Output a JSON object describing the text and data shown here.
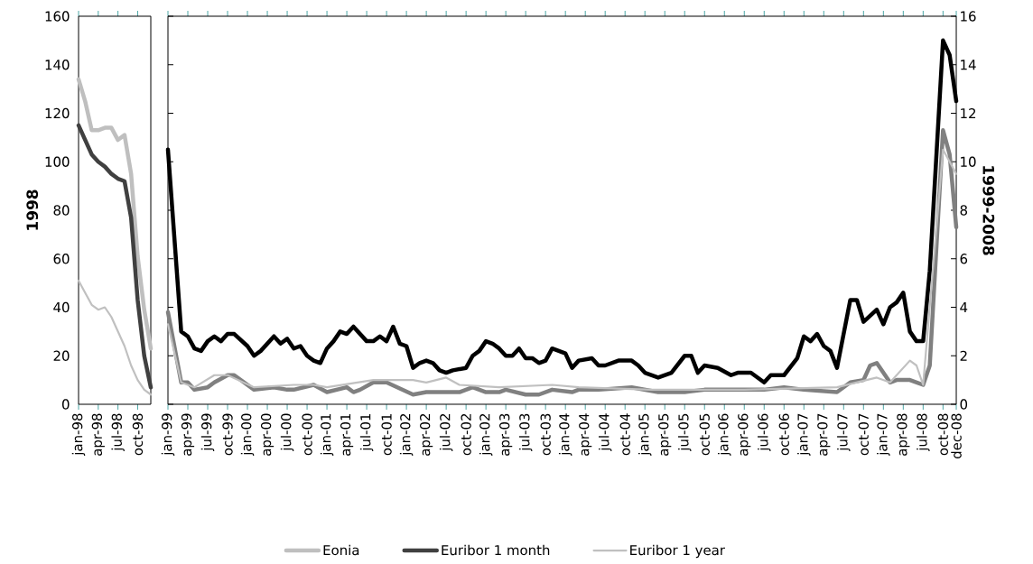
{
  "chart_data": [
    {
      "type": "line",
      "ylabel": "1998",
      "ylim": [
        0,
        160
      ],
      "yticks": [
        0,
        20,
        40,
        60,
        80,
        100,
        120,
        140,
        160
      ],
      "xlim": [
        "1998-01",
        "1998-12"
      ],
      "xticks": [
        {
          "value": "1998-01",
          "label": "jan-98"
        },
        {
          "value": "1998-04",
          "label": "apr-98"
        },
        {
          "value": "1998-07",
          "label": "jul-98"
        },
        {
          "value": "1998-10",
          "label": "oct-98"
        }
      ],
      "x": [
        "1998-01",
        "1998-02",
        "1998-03",
        "1998-04",
        "1998-05",
        "1998-06",
        "1998-07",
        "1998-08",
        "1998-09",
        "1998-10",
        "1998-11",
        "1998-12"
      ],
      "legend": "bottom",
      "series": [
        {
          "name": "Eonia",
          "color": "#bfbfbf",
          "values": [
            134,
            125,
            113,
            113,
            114,
            114,
            109,
            111,
            95,
            61,
            39,
            23
          ]
        },
        {
          "name": "Euribor 1 month",
          "color": "#404040",
          "values": [
            115,
            109,
            103,
            100,
            98,
            95,
            93,
            92,
            77,
            43,
            20,
            7
          ]
        },
        {
          "name": "Euribor 1 year",
          "color": "#c0c0c0",
          "values": [
            51,
            46,
            41,
            39,
            40,
            36,
            30,
            24,
            16,
            10,
            6,
            4
          ]
        }
      ]
    },
    {
      "type": "line",
      "y2label": "1999-2008",
      "y2lim": [
        0,
        16
      ],
      "y2ticks": [
        0,
        2,
        4,
        6,
        8,
        10,
        12,
        14,
        16
      ],
      "xlim": [
        "1999-01",
        "2008-12"
      ],
      "xticks": [
        {
          "value": "1999-01",
          "label": "jan-99"
        },
        {
          "value": "1999-04",
          "label": "apr-99"
        },
        {
          "value": "1999-07",
          "label": "jul-99"
        },
        {
          "value": "1999-10",
          "label": "oct-99"
        },
        {
          "value": "2000-01",
          "label": "jan-00"
        },
        {
          "value": "2000-04",
          "label": "apr-00"
        },
        {
          "value": "2000-07",
          "label": "jul-00"
        },
        {
          "value": "2000-10",
          "label": "oct-00"
        },
        {
          "value": "2001-01",
          "label": "jan-01"
        },
        {
          "value": "2001-04",
          "label": "apr-01"
        },
        {
          "value": "2001-07",
          "label": "jul-01"
        },
        {
          "value": "2001-10",
          "label": "oct-01"
        },
        {
          "value": "2002-01",
          "label": "jan-02"
        },
        {
          "value": "2002-04",
          "label": "apr-02"
        },
        {
          "value": "2002-07",
          "label": "jul-02"
        },
        {
          "value": "2002-10",
          "label": "oct-02"
        },
        {
          "value": "2003-01",
          "label": "jan-02"
        },
        {
          "value": "2003-04",
          "label": "apr-03"
        },
        {
          "value": "2003-07",
          "label": "jul-03"
        },
        {
          "value": "2003-10",
          "label": "oct-03"
        },
        {
          "value": "2004-01",
          "label": "jan-04"
        },
        {
          "value": "2004-04",
          "label": "apr-04"
        },
        {
          "value": "2004-07",
          "label": "jul-04"
        },
        {
          "value": "2004-10",
          "label": "oct-04"
        },
        {
          "value": "2005-01",
          "label": "jan-05"
        },
        {
          "value": "2005-04",
          "label": "apr-05"
        },
        {
          "value": "2005-07",
          "label": "jul-05"
        },
        {
          "value": "2005-10",
          "label": "oct-05"
        },
        {
          "value": "2006-01",
          "label": "jan-06"
        },
        {
          "value": "2006-04",
          "label": "apr-06"
        },
        {
          "value": "2006-07",
          "label": "jul-06"
        },
        {
          "value": "2006-10",
          "label": "oct-06"
        },
        {
          "value": "2007-01",
          "label": "jan-07"
        },
        {
          "value": "2007-04",
          "label": "apr-07"
        },
        {
          "value": "2007-07",
          "label": "jul-07"
        },
        {
          "value": "2007-10",
          "label": "oct-07"
        },
        {
          "value": "2008-01",
          "label": "jan-07"
        },
        {
          "value": "2008-04",
          "label": "apr-08"
        },
        {
          "value": "2008-07",
          "label": "jul-08"
        },
        {
          "value": "2008-10",
          "label": "oct-08"
        },
        {
          "value": "2008-12",
          "label": "dec-08"
        }
      ],
      "series": [
        {
          "axis": "y2",
          "color": "#000000",
          "x": [
            "1999-01",
            "1999-03",
            "1999-04",
            "1999-05",
            "1999-06",
            "1999-07",
            "1999-08",
            "1999-09",
            "1999-10",
            "1999-11",
            "2000-01",
            "2000-02",
            "2000-03",
            "2000-05",
            "2000-06",
            "2000-07",
            "2000-08",
            "2000-09",
            "2000-10",
            "2000-11",
            "2000-12",
            "2001-01",
            "2001-02",
            "2001-03",
            "2001-04",
            "2001-05",
            "2001-06",
            "2001-07",
            "2001-08",
            "2001-09",
            "2001-10",
            "2001-11",
            "2001-12",
            "2002-01",
            "2002-02",
            "2002-03",
            "2002-04",
            "2002-05",
            "2002-06",
            "2002-07",
            "2002-08",
            "2002-10",
            "2002-11",
            "2002-12",
            "2003-01",
            "2003-02",
            "2003-03",
            "2003-04",
            "2003-05",
            "2003-06",
            "2003-07",
            "2003-08",
            "2003-09",
            "2003-10",
            "2003-11",
            "2003-12",
            "2004-01",
            "2004-02",
            "2004-03",
            "2004-05",
            "2004-06",
            "2004-07",
            "2004-09",
            "2004-11",
            "2004-12",
            "2005-01",
            "2005-03",
            "2005-05",
            "2005-07",
            "2005-08",
            "2005-09",
            "2005-10",
            "2005-12",
            "2006-02",
            "2006-03",
            "2006-05",
            "2006-07",
            "2006-08",
            "2006-10",
            "2006-12",
            "2007-01",
            "2007-02",
            "2007-03",
            "2007-04",
            "2007-05",
            "2007-06",
            "2007-08",
            "2007-09",
            "2007-10",
            "2007-12",
            "2008-01",
            "2008-02",
            "2008-03",
            "2008-04",
            "2008-05",
            "2008-06",
            "2008-07",
            "2008-08",
            "2008-10",
            "2008-11",
            "2008-12"
          ],
          "values": [
            10.5,
            3.0,
            2.8,
            2.3,
            2.2,
            2.6,
            2.8,
            2.6,
            2.9,
            2.9,
            2.4,
            2.0,
            2.2,
            2.8,
            2.5,
            2.7,
            2.3,
            2.4,
            2.0,
            1.8,
            1.7,
            2.3,
            2.6,
            3.0,
            2.9,
            3.2,
            2.9,
            2.6,
            2.6,
            2.8,
            2.6,
            3.2,
            2.5,
            2.4,
            1.5,
            1.7,
            1.8,
            1.7,
            1.4,
            1.3,
            1.4,
            1.5,
            2.0,
            2.2,
            2.6,
            2.5,
            2.3,
            2.0,
            2.0,
            2.3,
            1.9,
            1.9,
            1.7,
            1.8,
            2.3,
            2.2,
            2.1,
            1.5,
            1.8,
            1.9,
            1.6,
            1.6,
            1.8,
            1.8,
            1.6,
            1.3,
            1.1,
            1.3,
            2.0,
            2.0,
            1.3,
            1.6,
            1.5,
            1.2,
            1.3,
            1.3,
            0.9,
            1.2,
            1.2,
            1.9,
            2.8,
            2.6,
            2.9,
            2.4,
            2.2,
            1.5,
            4.3,
            4.3,
            3.4,
            3.9,
            3.3,
            4.0,
            4.2,
            4.6,
            3.0,
            2.6,
            2.6,
            5.5,
            15.0,
            14.4,
            12.5
          ]
        },
        {
          "axis": "y2",
          "color": "#808080",
          "x": [
            "1999-01",
            "1999-03",
            "1999-04",
            "1999-05",
            "1999-07",
            "1999-08",
            "1999-10",
            "1999-11",
            "2000-02",
            "2000-05",
            "2000-07",
            "2000-08",
            "2000-11",
            "2001-01",
            "2001-04",
            "2001-05",
            "2001-06",
            "2001-08",
            "2001-10",
            "2002-02",
            "2002-04",
            "2002-07",
            "2002-09",
            "2002-11",
            "2003-01",
            "2003-03",
            "2003-04",
            "2003-07",
            "2003-09",
            "2003-11",
            "2004-02",
            "2004-03",
            "2004-06",
            "2004-11",
            "2005-03",
            "2005-07",
            "2005-10",
            "2006-04",
            "2006-07",
            "2006-10",
            "2007-01",
            "2007-06",
            "2007-08",
            "2007-10",
            "2007-11",
            "2007-12",
            "2008-02",
            "2008-03",
            "2008-05",
            "2008-07",
            "2008-08",
            "2008-10",
            "2008-11",
            "2008-12"
          ],
          "values": [
            3.8,
            0.9,
            0.9,
            0.6,
            0.7,
            0.9,
            1.2,
            1.2,
            0.6,
            0.7,
            0.6,
            0.6,
            0.8,
            0.5,
            0.7,
            0.5,
            0.6,
            0.9,
            0.9,
            0.4,
            0.5,
            0.5,
            0.5,
            0.7,
            0.5,
            0.5,
            0.6,
            0.4,
            0.4,
            0.6,
            0.5,
            0.6,
            0.6,
            0.7,
            0.5,
            0.5,
            0.6,
            0.6,
            0.6,
            0.7,
            0.6,
            0.5,
            0.9,
            1.0,
            1.6,
            1.7,
            0.9,
            1.0,
            1.0,
            0.8,
            1.6,
            11.3,
            10.3,
            7.3
          ]
        },
        {
          "axis": "y2",
          "color": "#c0c0c0",
          "x": [
            "1999-01",
            "1999-03",
            "1999-05",
            "1999-08",
            "1999-10",
            "2000-02",
            "2000-08",
            "2000-11",
            "2001-01",
            "2001-08",
            "2002-02",
            "2002-04",
            "2002-07",
            "2002-09",
            "2003-03",
            "2003-11",
            "2004-03",
            "2005-02",
            "2006-04",
            "2007-06",
            "2007-12",
            "2008-02",
            "2008-05",
            "2008-06",
            "2008-07",
            "2008-10",
            "2008-12"
          ],
          "values": [
            3.3,
            0.9,
            0.7,
            1.2,
            1.2,
            0.7,
            0.8,
            0.8,
            0.7,
            1.0,
            1.0,
            0.9,
            1.1,
            0.8,
            0.7,
            0.8,
            0.7,
            0.6,
            0.6,
            0.7,
            1.1,
            0.9,
            1.8,
            1.6,
            0.8,
            10.5,
            9.5
          ]
        }
      ]
    }
  ]
}
